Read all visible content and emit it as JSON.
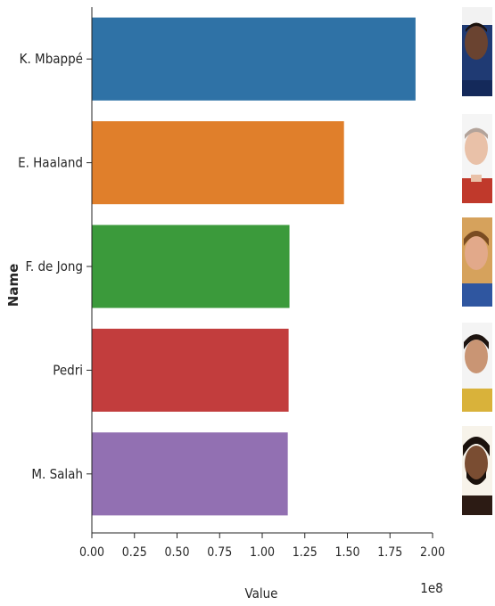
{
  "chart_data": {
    "type": "bar",
    "orientation": "horizontal",
    "categories": [
      "K. Mbappé",
      "E. Haaland",
      "F. de Jong",
      "Pedri",
      "M. Salah"
    ],
    "values": [
      190000000,
      148000000,
      116000000,
      115500000,
      115000000
    ],
    "colors": [
      "#2f72a6",
      "#e07f2b",
      "#3b9a3b",
      "#c23d3d",
      "#9270b2"
    ],
    "xlabel": "Value",
    "ylabel": "Name",
    "x_offset_label": "1e8",
    "xlim": [
      0,
      200000000
    ],
    "x_ticks": [
      0,
      25000000,
      50000000,
      75000000,
      100000000,
      125000000,
      150000000,
      175000000,
      200000000
    ],
    "x_tick_labels": [
      "0.00",
      "0.25",
      "0.50",
      "0.75",
      "1.00",
      "1.25",
      "1.50",
      "1.75",
      "2.00"
    ],
    "grid": false,
    "legend": "none",
    "player_photos": [
      "photo-mbappe",
      "photo-haaland",
      "photo-de-jong",
      "photo-pedri",
      "photo-salah"
    ]
  }
}
